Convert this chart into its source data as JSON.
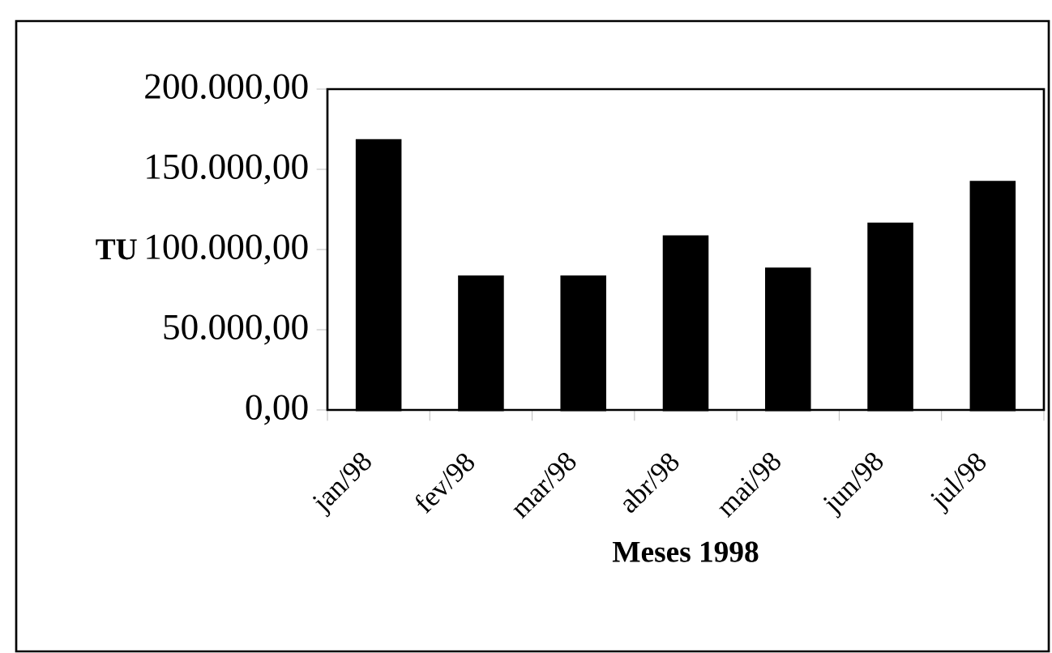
{
  "chart_data": {
    "type": "bar",
    "xlabel": "Meses 1998",
    "ylabel": "TU",
    "categories": [
      "jan/98",
      "fev/98",
      "mar/98",
      "abr/98",
      "mai/98",
      "jun/98",
      "jul/98"
    ],
    "values": [
      168000,
      83000,
      83000,
      108000,
      88000,
      116000,
      142000
    ],
    "color": "#000000",
    "ylim": [
      0,
      200000
    ],
    "yticks": [
      {
        "value": 0,
        "label": "0,00"
      },
      {
        "value": 50000,
        "label": "50.000,00"
      },
      {
        "value": 100000,
        "label": "100.000,00"
      },
      {
        "value": 150000,
        "label": "150.000,00"
      },
      {
        "value": 200000,
        "label": "200.000,00"
      }
    ],
    "grid": false
  }
}
